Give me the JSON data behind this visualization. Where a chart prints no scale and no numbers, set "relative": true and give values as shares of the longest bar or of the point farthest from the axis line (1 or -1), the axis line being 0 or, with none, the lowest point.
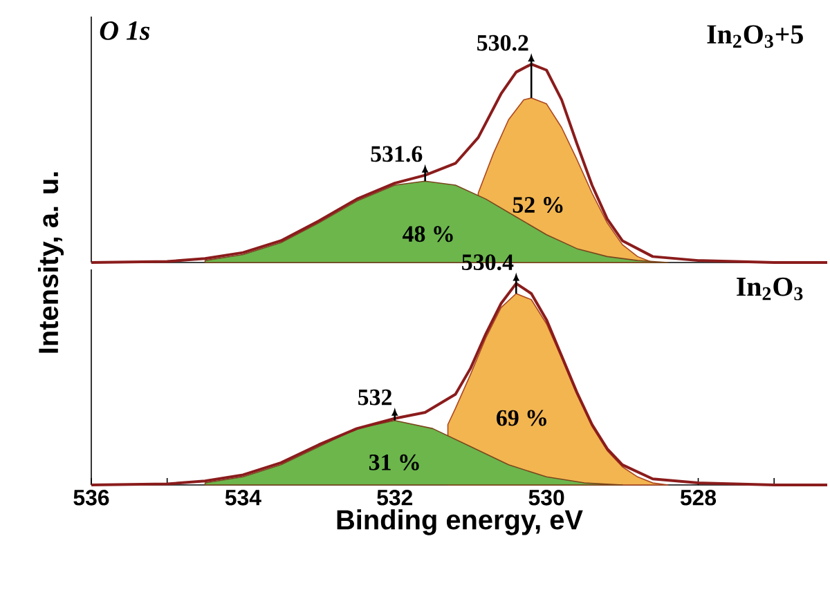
{
  "chart_data": [
    {
      "type": "area",
      "title": "In$_{2}$O$_{3}$+5",
      "ylabel": "Intensity, a. u.",
      "relative": true,
      "tick_labels": false,
      "xlim": [
        536,
        526.3
      ],
      "annotations": [
        "O 1s",
        {
          "text": "530.2",
          "x": 530.2,
          "y": 0.83
        },
        {
          "text": "531.6",
          "x": 531.6,
          "y": 0.41
        }
      ],
      "series": [
        {
          "name": "52 %",
          "color": "#f2b550",
          "x": [
            530.9,
            530.7,
            530.5,
            530.3,
            530.2,
            530.0,
            529.8,
            529.6,
            529.4,
            529.2,
            529.0,
            528.8,
            528.6
          ],
          "values": [
            0.35,
            0.55,
            0.72,
            0.82,
            0.83,
            0.8,
            0.68,
            0.52,
            0.35,
            0.2,
            0.09,
            0.03,
            0.0
          ]
        },
        {
          "name": "48 %",
          "color": "#6cb64c",
          "x": [
            534.5,
            534,
            533.5,
            533,
            532.5,
            532,
            531.6,
            531.2,
            530.8,
            530.4,
            530,
            529.6,
            529.2,
            528.8,
            528.4
          ],
          "values": [
            0.01,
            0.04,
            0.1,
            0.2,
            0.31,
            0.39,
            0.41,
            0.39,
            0.32,
            0.23,
            0.14,
            0.07,
            0.03,
            0.01,
            0.0
          ]
        },
        {
          "type": "line",
          "color": "#8b1c1c",
          "x": [
            536,
            535,
            534.5,
            534,
            533.5,
            533,
            532.5,
            532,
            531.6,
            531.2,
            530.9,
            530.6,
            530.4,
            530.2,
            530,
            529.8,
            529.6,
            529.4,
            529.2,
            529,
            528.6,
            528,
            527,
            526.3
          ],
          "values": [
            0,
            0.005,
            0.02,
            0.05,
            0.11,
            0.21,
            0.32,
            0.4,
            0.44,
            0.5,
            0.63,
            0.85,
            0.96,
            1.0,
            0.97,
            0.82,
            0.6,
            0.39,
            0.22,
            0.11,
            0.03,
            0.01,
            0,
            0
          ]
        }
      ]
    },
    {
      "type": "area",
      "title": "In$_{2}$O$_{3}$",
      "xlabel": "Binding energy, eV",
      "relative": true,
      "tick_labels": "x",
      "xlim": [
        536,
        526.3
      ],
      "xticks": [
        536,
        {
          "value": 535,
          "label": null
        },
        534,
        {
          "value": 533,
          "label": null
        },
        532,
        {
          "value": 531,
          "label": null
        },
        530,
        {
          "value": 529,
          "label": null
        },
        528,
        {
          "value": 527,
          "label": null
        }
      ],
      "annotations": [
        {
          "text": "530.4",
          "x": 530.4,
          "y": 0.95
        },
        {
          "text": "532",
          "x": 532,
          "y": 0.32
        }
      ],
      "series": [
        {
          "name": "69 %",
          "color": "#f2b550",
          "x": [
            531.3,
            531.2,
            531,
            530.8,
            530.6,
            530.4,
            530.2,
            530,
            529.8,
            529.6,
            529.4,
            529.2,
            529,
            528.8,
            528.6,
            528.4
          ],
          "values": [
            0.3,
            0.38,
            0.55,
            0.73,
            0.88,
            0.95,
            0.92,
            0.8,
            0.63,
            0.45,
            0.29,
            0.17,
            0.09,
            0.04,
            0.01,
            0.0
          ]
        },
        {
          "name": "31 %",
          "color": "#6cb64c",
          "x": [
            534.5,
            534,
            533.5,
            533,
            532.5,
            532,
            531.5,
            531,
            530.5,
            530,
            529.5,
            529
          ],
          "values": [
            0.01,
            0.04,
            0.1,
            0.19,
            0.28,
            0.32,
            0.28,
            0.19,
            0.1,
            0.04,
            0.01,
            0.0
          ]
        },
        {
          "type": "line",
          "color": "#8b1c1c",
          "x": [
            536,
            535,
            534.5,
            534,
            533.5,
            533,
            532.5,
            532,
            531.6,
            531.2,
            531,
            530.8,
            530.6,
            530.4,
            530.2,
            530,
            529.8,
            529.6,
            529.4,
            529.2,
            529,
            528.6,
            528,
            527,
            526.3
          ],
          "values": [
            0,
            0.005,
            0.02,
            0.05,
            0.11,
            0.2,
            0.28,
            0.33,
            0.36,
            0.45,
            0.58,
            0.75,
            0.9,
            1.0,
            0.95,
            0.82,
            0.64,
            0.46,
            0.3,
            0.18,
            0.1,
            0.03,
            0.01,
            0,
            0
          ]
        }
      ]
    }
  ]
}
